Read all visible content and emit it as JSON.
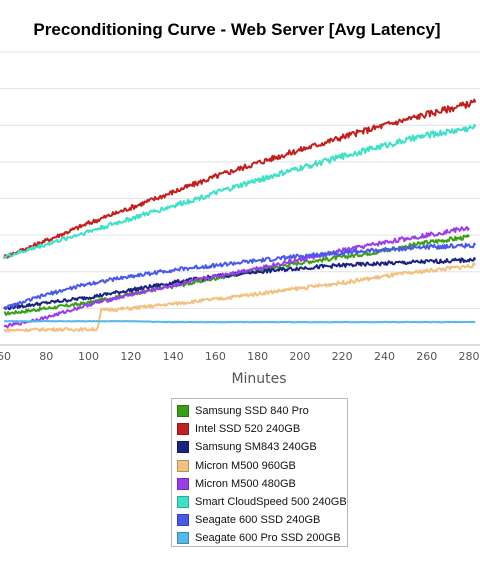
{
  "chart_data": {
    "type": "line",
    "title": "Preconditioning Curve - Web Server [Avg Latency]",
    "xlabel": "Minutes",
    "x_ticks": [
      60,
      80,
      100,
      120,
      140,
      160,
      180,
      200,
      220,
      240,
      260,
      280
    ],
    "xlim": [
      60,
      283
    ],
    "ylim": [
      0,
      320
    ],
    "grid": true,
    "legend_position": "bottom",
    "series": [
      {
        "name": "Samsung SSD 840 Pro",
        "color": "#3a9e1a",
        "points": [
          [
            60,
            34
          ],
          [
            80,
            40
          ],
          [
            100,
            46
          ],
          [
            120,
            56
          ],
          [
            140,
            64
          ],
          [
            160,
            73
          ],
          [
            180,
            82
          ],
          [
            200,
            90
          ],
          [
            220,
            96
          ],
          [
            240,
            103
          ],
          [
            260,
            112
          ],
          [
            280,
            118
          ]
        ]
      },
      {
        "name": "Intel SSD 520 240GB",
        "color": "#c0201e",
        "points": [
          [
            60,
            96
          ],
          [
            80,
            114
          ],
          [
            100,
            133
          ],
          [
            120,
            150
          ],
          [
            140,
            167
          ],
          [
            160,
            184
          ],
          [
            180,
            199
          ],
          [
            200,
            213
          ],
          [
            220,
            227
          ],
          [
            240,
            240
          ],
          [
            260,
            252
          ],
          [
            283,
            265
          ]
        ]
      },
      {
        "name": "Samsung SM843 240GB",
        "color": "#1a237e",
        "points": [
          [
            60,
            40
          ],
          [
            80,
            46
          ],
          [
            100,
            52
          ],
          [
            120,
            60
          ],
          [
            140,
            68
          ],
          [
            160,
            75
          ],
          [
            180,
            80
          ],
          [
            200,
            84
          ],
          [
            220,
            87
          ],
          [
            240,
            89
          ],
          [
            260,
            91
          ],
          [
            283,
            93
          ]
        ]
      },
      {
        "name": "Micron M500 960GB",
        "color": "#f2c080",
        "points": [
          [
            60,
            16
          ],
          [
            80,
            17
          ],
          [
            104,
            17
          ],
          [
            106,
            38
          ],
          [
            120,
            40
          ],
          [
            140,
            45
          ],
          [
            160,
            50
          ],
          [
            180,
            56
          ],
          [
            200,
            62
          ],
          [
            220,
            68
          ],
          [
            240,
            75
          ],
          [
            260,
            81
          ],
          [
            283,
            87
          ]
        ]
      },
      {
        "name": "Micron M500 480GB",
        "color": "#9b3ee8",
        "points": [
          [
            60,
            20
          ],
          [
            80,
            30
          ],
          [
            100,
            44
          ],
          [
            120,
            55
          ],
          [
            140,
            65
          ],
          [
            160,
            75
          ],
          [
            180,
            84
          ],
          [
            200,
            93
          ],
          [
            220,
            103
          ],
          [
            240,
            112
          ],
          [
            260,
            120
          ],
          [
            280,
            128
          ]
        ]
      },
      {
        "name": "Smart CloudSpeed 500 240GB",
        "color": "#40e0c8",
        "points": [
          [
            60,
            96
          ],
          [
            80,
            110
          ],
          [
            100,
            124
          ],
          [
            120,
            138
          ],
          [
            140,
            152
          ],
          [
            160,
            166
          ],
          [
            180,
            180
          ],
          [
            200,
            193
          ],
          [
            220,
            206
          ],
          [
            240,
            218
          ],
          [
            260,
            229
          ],
          [
            283,
            238
          ]
        ]
      },
      {
        "name": "Seagate 600 SSD 240GB",
        "color": "#4a5ae8",
        "points": [
          [
            60,
            40
          ],
          [
            80,
            55
          ],
          [
            100,
            67
          ],
          [
            120,
            75
          ],
          [
            140,
            82
          ],
          [
            160,
            87
          ],
          [
            180,
            92
          ],
          [
            200,
            97
          ],
          [
            220,
            101
          ],
          [
            240,
            104
          ],
          [
            260,
            107
          ],
          [
            283,
            109
          ]
        ]
      },
      {
        "name": "Seagate 600 Pro SSD 200GB",
        "color": "#55b8e8",
        "points": [
          [
            60,
            26
          ],
          [
            80,
            26
          ],
          [
            100,
            26
          ],
          [
            120,
            26
          ],
          [
            140,
            25
          ],
          [
            160,
            25
          ],
          [
            180,
            25
          ],
          [
            200,
            25
          ],
          [
            220,
            25
          ],
          [
            240,
            25
          ],
          [
            260,
            25
          ],
          [
            283,
            25
          ]
        ]
      }
    ]
  }
}
